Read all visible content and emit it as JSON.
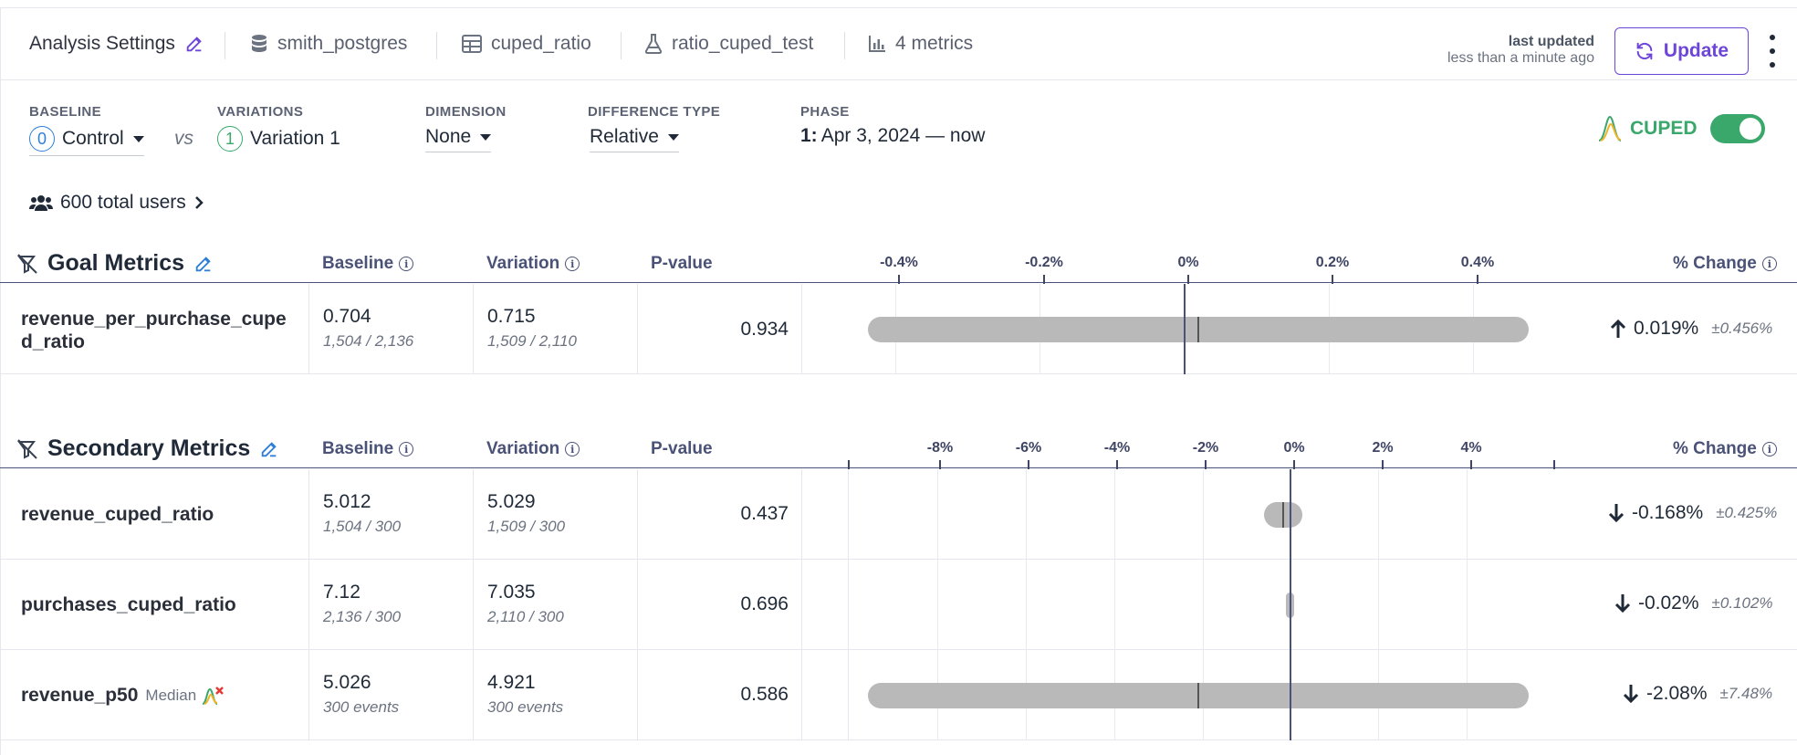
{
  "header": {
    "analysis_settings": "Analysis Settings",
    "datasource": "smith_postgres",
    "table": "cuped_ratio",
    "experiment": "ratio_cuped_test",
    "metrics_count": "4 metrics",
    "last_updated_label": "last updated",
    "last_updated_value": "less than a minute ago",
    "update_label": "Update"
  },
  "filters": {
    "baseline_label": "BASELINE",
    "baseline_index": "0",
    "baseline_value": "Control",
    "vs": "vs",
    "variations_label": "VARIATIONS",
    "variation_index": "1",
    "variation_value": "Variation 1",
    "dimension_label": "DIMENSION",
    "dimension_value": "None",
    "difference_label": "DIFFERENCE TYPE",
    "difference_value": "Relative",
    "phase_label": "PHASE",
    "phase_num": "1:",
    "phase_value": "Apr 3, 2024 — now",
    "cuped_label": "CUPED",
    "cuped_enabled": true,
    "total_users": "600 total users"
  },
  "columns": {
    "baseline": "Baseline",
    "variation": "Variation",
    "pvalue": "P-value",
    "change": "% Change"
  },
  "goal": {
    "title": "Goal Metrics",
    "ticks": [
      "-0.4%",
      "-0.2%",
      "0%",
      "0.2%",
      "0.4%"
    ],
    "rows": [
      {
        "name_line1": "revenue_per_purchase_cupe",
        "name_line2": "d_ratio",
        "baseline": "0.704",
        "baseline_sub": "1,504 / 2,136",
        "variation": "0.715",
        "variation_sub": "1,509 / 2,110",
        "pvalue": "0.934",
        "change": "0.019%",
        "ci": "±0.456%",
        "direction": "up"
      }
    ]
  },
  "secondary": {
    "title": "Secondary Metrics",
    "ticks": [
      "-8%",
      "-6%",
      "-4%",
      "-2%",
      "0%",
      "2%",
      "4%"
    ],
    "rows": [
      {
        "name": "revenue_cuped_ratio",
        "baseline": "5.012",
        "baseline_sub": "1,504 / 300",
        "variation": "5.029",
        "variation_sub": "1,509 / 300",
        "pvalue": "0.437",
        "change": "-0.168%",
        "ci": "±0.425%",
        "direction": "down"
      },
      {
        "name": "purchases_cuped_ratio",
        "baseline": "7.12",
        "baseline_sub": "2,136 / 300",
        "variation": "7.035",
        "variation_sub": "2,110 / 300",
        "pvalue": "0.696",
        "change": "-0.02%",
        "ci": "±0.102%",
        "direction": "down"
      },
      {
        "name": "revenue_p50",
        "tag": "Median",
        "baseline": "5.026",
        "baseline_sub": "300 events",
        "variation": "4.921",
        "variation_sub": "300 events",
        "pvalue": "0.586",
        "change": "-2.08%",
        "ci": "±7.48%",
        "direction": "down"
      }
    ]
  },
  "colors": {
    "accent": "#6d45d8",
    "cuped_green": "#3aa86b",
    "axis": "#4b5278",
    "bar": "#b9b9b9"
  }
}
